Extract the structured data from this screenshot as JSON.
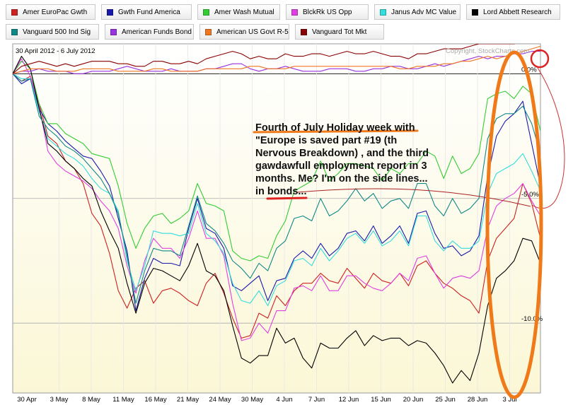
{
  "legend": [
    {
      "label": "Amer EuroPac Gwth",
      "color": "#cc2222"
    },
    {
      "label": "Gwth Fund America",
      "color": "#1a1aaa"
    },
    {
      "label": "Amer Wash Mutual",
      "color": "#33cc33"
    },
    {
      "label": "BlckRk US Opp",
      "color": "#e040e0"
    },
    {
      "label": "Janus Adv MC Value",
      "color": "#33dddd"
    },
    {
      "label": "Lord Abbett Research",
      "color": "#000000"
    },
    {
      "label": "Vanguard 500 Ind Sig",
      "color": "#118888"
    },
    {
      "label": "American Funds Bond",
      "color": "#9933dd"
    },
    {
      "label": "American US Govt R-5",
      "color": "#ee7722"
    },
    {
      "label": "Vanguard Tot Mkt",
      "color": "#880000"
    }
  ],
  "header": {
    "date_range": "30 April 2012 - 6 July 2012",
    "copyright": "Copyright, StockCharts.com"
  },
  "annotation": {
    "lines": [
      "Fourth of July Holiday week with",
      "\"Europe is saved part #19 (th",
      "Nervous Breakdown) , and the third",
      "gawdawfull employment report in 3",
      "months. Me?  I'm on the side lines...",
      "in bonds..."
    ],
    "underline_color": "#dd2222",
    "ellipse_color": "#f07a1a",
    "circle_color": "#dd2222"
  },
  "chart_data": {
    "type": "line",
    "title": "",
    "x_tick_labels": [
      "30 Apr",
      "3 May",
      "8 May",
      "11 May",
      "16 May",
      "21 May",
      "24 May",
      "30 May",
      "4 Jun",
      "7 Jun",
      "12 Jun",
      "15 Jun",
      "20 Jun",
      "25 Jun",
      "28 Jun",
      "3 Jul"
    ],
    "y_tick_labels": [
      "0.0%",
      "-5.0%",
      "-10.0%"
    ],
    "y_ticks": [
      0,
      -5,
      -10
    ],
    "ylim": [
      -12.8,
      1.2
    ],
    "grid": true,
    "legend_position": "top",
    "series": [
      {
        "name": "Amer EuroPac Gwth",
        "color": "#cc2222",
        "values": [
          0,
          -0.3,
          -0.1,
          -1.2,
          -2.5,
          -2.8,
          -3.5,
          -3.8,
          -4.4,
          -5.6,
          -6.1,
          -7.2,
          -8.7,
          -9.4,
          -8.6,
          -8.3,
          -9.2,
          -8.7,
          -8.6,
          -8.8,
          -9.1,
          -9.3,
          -8.4,
          -8.0,
          -8.8,
          -9.8,
          -10.6,
          -10.5,
          -9.6,
          -9.8,
          -8.9,
          -9.3,
          -8.7,
          -8.4,
          -8.4,
          -8.0,
          -8.3,
          -8.4,
          -7.8,
          -8.2,
          -8.6,
          -8.0,
          -8.3,
          -8.4,
          -8.0,
          -8.5,
          -7.7,
          -7.5,
          -8.0,
          -8.4,
          -8.6,
          -8.9,
          -9.1,
          -9.6,
          -7.5,
          -6.6,
          -6.2,
          -5.8,
          -4.4,
          -5.2,
          -6.6
        ]
      },
      {
        "name": "Gwth Fund America",
        "color": "#1a1aaa",
        "values": [
          0,
          -0.4,
          -0.2,
          -1.4,
          -2.0,
          -2.3,
          -2.7,
          -3.0,
          -3.3,
          -3.4,
          -3.9,
          -4.5,
          -5.8,
          -7.1,
          -9.5,
          -8.2,
          -7.4,
          -7.6,
          -7.6,
          -7.7,
          -6.2,
          -5.0,
          -6.2,
          -6.4,
          -7.0,
          -8.5,
          -8.7,
          -8.4,
          -8.1,
          -9.1,
          -8.3,
          -8.2,
          -7.4,
          -7.1,
          -7.4,
          -6.8,
          -7.3,
          -7.0,
          -6.4,
          -6.3,
          -6.7,
          -6.1,
          -6.8,
          -6.5,
          -6.1,
          -6.8,
          -5.6,
          -5.5,
          -6.4,
          -7.0,
          -6.9,
          -7.3,
          -7.1,
          -6.5,
          -4.1,
          -2.5,
          -1.9,
          -1.6,
          -1.1,
          -2.8,
          -4.5
        ]
      },
      {
        "name": "Amer Wash Mutual",
        "color": "#33cc33",
        "values": [
          0,
          0.5,
          0.2,
          -1.2,
          -2.0,
          -2.0,
          -2.4,
          -2.6,
          -2.8,
          -3.2,
          -3.3,
          -3.4,
          -4.5,
          -6.0,
          -7.0,
          -6.2,
          -5.7,
          -5.6,
          -6.0,
          -5.8,
          -5.5,
          -4.4,
          -5.2,
          -5.3,
          -5.5,
          -7.1,
          -7.4,
          -7.5,
          -7.3,
          -7.4,
          -6.5,
          -5.9,
          -4.7,
          -4.5,
          -4.3,
          -3.5,
          -4.3,
          -4.0,
          -3.6,
          -3.6,
          -3.7,
          -3.8,
          -4.3,
          -3.8,
          -4.0,
          -3.6,
          -3.6,
          -3.1,
          -3.3,
          -4.2,
          -3.3,
          -4.0,
          -3.8,
          -3.2,
          -1.0,
          -0.8,
          -0.7,
          -1.0,
          -0.5,
          -0.8,
          -2.3
        ]
      },
      {
        "name": "BlckRk US Opp",
        "color": "#e040e0",
        "values": [
          0,
          0.6,
          -0.1,
          -1.3,
          -3.1,
          -3.6,
          -3.9,
          -4.1,
          -4.3,
          -4.6,
          -5.1,
          -5.5,
          -6.2,
          -7.7,
          -8.8,
          -7.5,
          -6.6,
          -7.0,
          -7.0,
          -7.4,
          -6.6,
          -5.5,
          -6.6,
          -6.6,
          -7.3,
          -9.2,
          -10.7,
          -10.6,
          -10.0,
          -10.4,
          -9.5,
          -9.5,
          -8.6,
          -8.5,
          -8.7,
          -8.1,
          -8.7,
          -8.7,
          -8.1,
          -8.1,
          -8.4,
          -8.6,
          -8.7,
          -8.4,
          -8.0,
          -8.3,
          -7.4,
          -7.3,
          -8.0,
          -8.6,
          -8.2,
          -8.1,
          -8.2,
          -7.9,
          -6.2,
          -5.3,
          -5.0,
          -4.8,
          -4.4,
          -5.1,
          -5.7
        ]
      },
      {
        "name": "Janus Adv MC Value",
        "color": "#33dddd",
        "values": [
          0,
          -0.2,
          -0.2,
          -1.5,
          -2.6,
          -2.9,
          -3.2,
          -3.4,
          -3.7,
          -4.2,
          -4.6,
          -4.8,
          -5.5,
          -7.5,
          -8.7,
          -7.7,
          -6.3,
          -6.4,
          -6.4,
          -6.5,
          -6.4,
          -5.2,
          -6.4,
          -6.7,
          -7.2,
          -8.4,
          -9.1,
          -9.2,
          -8.7,
          -9.3,
          -8.5,
          -8.3,
          -7.5,
          -7.4,
          -7.7,
          -7.0,
          -7.5,
          -7.1,
          -6.6,
          -6.4,
          -6.8,
          -6.3,
          -6.9,
          -6.7,
          -6.3,
          -6.9,
          -5.7,
          -5.7,
          -6.7,
          -7.1,
          -6.7,
          -7.0,
          -7.0,
          -6.7,
          -4.8,
          -4.0,
          -3.8,
          -3.6,
          -3.2,
          -3.9,
          -4.7
        ]
      },
      {
        "name": "Lord Abbett Research",
        "color": "#000000",
        "values": [
          0,
          0.7,
          0.2,
          -1.4,
          -2.8,
          -3.1,
          -3.5,
          -3.8,
          -4.2,
          -4.5,
          -5.5,
          -6.3,
          -7.0,
          -8.4,
          -9.6,
          -8.4,
          -7.8,
          -7.9,
          -8.1,
          -8.3,
          -7.7,
          -6.8,
          -7.9,
          -8.1,
          -8.7,
          -10.1,
          -11.4,
          -11.6,
          -11.3,
          -11.3,
          -10.2,
          -10.8,
          -10.6,
          -11.4,
          -11.8,
          -10.8,
          -11.0,
          -11.0,
          -10.6,
          -10.3,
          -10.9,
          -10.5,
          -10.7,
          -10.6,
          -10.6,
          -10.9,
          -10.7,
          -10.8,
          -11.2,
          -11.7,
          -12.4,
          -11.9,
          -12.3,
          -11.2,
          -9.3,
          -8.2,
          -7.9,
          -7.5,
          -6.6,
          -6.7,
          -7.6
        ]
      },
      {
        "name": "Vanguard 500 Ind Sig",
        "color": "#118888",
        "values": [
          0,
          -0.3,
          -0.2,
          -1.7,
          -2.2,
          -2.5,
          -2.9,
          -3.1,
          -3.4,
          -3.8,
          -4.2,
          -4.8,
          -5.6,
          -7.3,
          -9.2,
          -7.9,
          -7.0,
          -7.1,
          -7.1,
          -7.3,
          -6.1,
          -4.9,
          -6.0,
          -6.3,
          -6.8,
          -7.5,
          -7.8,
          -8.2,
          -7.6,
          -7.9,
          -7.0,
          -6.7,
          -5.8,
          -5.7,
          -5.9,
          -5.0,
          -5.7,
          -5.5,
          -5.1,
          -4.6,
          -5.1,
          -4.8,
          -5.4,
          -5.1,
          -5.0,
          -5.4,
          -4.4,
          -4.4,
          -5.3,
          -5.7,
          -5.0,
          -5.6,
          -5.4,
          -5.0,
          -2.6,
          -1.8,
          -1.6,
          -1.6,
          -1.3,
          -2.0,
          -3.2
        ]
      },
      {
        "name": "American Funds Bond",
        "color": "#9933dd",
        "values": [
          0,
          0.1,
          0.1,
          0.2,
          0.1,
          0.1,
          0.1,
          0.0,
          0.0,
          0.1,
          0.1,
          0.1,
          0.2,
          0.3,
          0.2,
          0.1,
          0.1,
          0.1,
          0.2,
          0.1,
          0.1,
          0.1,
          0.2,
          0.2,
          0.3,
          0.4,
          0.4,
          0.2,
          0.1,
          0.2,
          0.2,
          0.3,
          0.2,
          0.1,
          0.1,
          0.1,
          0.2,
          0.2,
          0.2,
          0.1,
          0.1,
          0.2,
          0.2,
          0.3,
          0.3,
          0.2,
          0.2,
          0.3,
          0.4,
          0.3,
          0.4,
          0.5,
          0.6,
          0.7,
          0.6,
          0.7,
          0.7,
          0.8,
          0.8,
          0.9,
          0.9
        ]
      },
      {
        "name": "American US Govt R-5",
        "color": "#ee7722",
        "values": [
          0,
          0.1,
          0.2,
          0.2,
          0.2,
          0.1,
          0.1,
          0.1,
          0.2,
          0.2,
          0.2,
          0.2,
          0.1,
          0.1,
          0.1,
          0.1,
          0.2,
          0.2,
          0.1,
          0.1,
          0.1,
          0.1,
          0.2,
          0.2,
          0.2,
          0.2,
          0.2,
          0.3,
          0.3,
          0.2,
          0.2,
          0.2,
          0.3,
          0.3,
          0.3,
          0.3,
          0.3,
          0.3,
          0.3,
          0.3,
          0.3,
          0.3,
          0.3,
          0.3,
          0.2,
          0.2,
          0.3,
          0.3,
          0.3,
          0.4,
          0.4,
          0.5,
          0.5,
          0.6,
          0.7,
          0.6,
          0.7,
          0.8,
          0.9,
          1.0,
          1.1
        ]
      },
      {
        "name": "Vanguard Tot Mkt",
        "color": "#880000",
        "values": [
          0,
          0.3,
          0.4,
          0.5,
          0.4,
          0.3,
          0.4,
          0.3,
          0.4,
          0.5,
          0.5,
          0.5,
          0.4,
          0.4,
          0.3,
          0.3,
          0.5,
          0.5,
          0.4,
          0.4,
          0.5,
          0.4,
          0.6,
          0.7,
          0.8,
          0.9,
          0.8,
          0.6,
          0.7,
          0.6,
          0.6,
          0.8,
          0.7,
          0.7,
          0.8,
          0.8,
          0.7,
          0.8,
          0.9,
          0.8,
          0.8,
          0.9,
          0.8,
          0.7,
          0.7,
          0.6,
          0.8,
          0.8,
          0.9,
          1.0,
          1.0,
          1.0,
          1.1,
          1.2,
          1.2,
          1.2,
          1.2,
          1.2,
          1.3,
          1.4,
          1.5
        ]
      }
    ]
  }
}
